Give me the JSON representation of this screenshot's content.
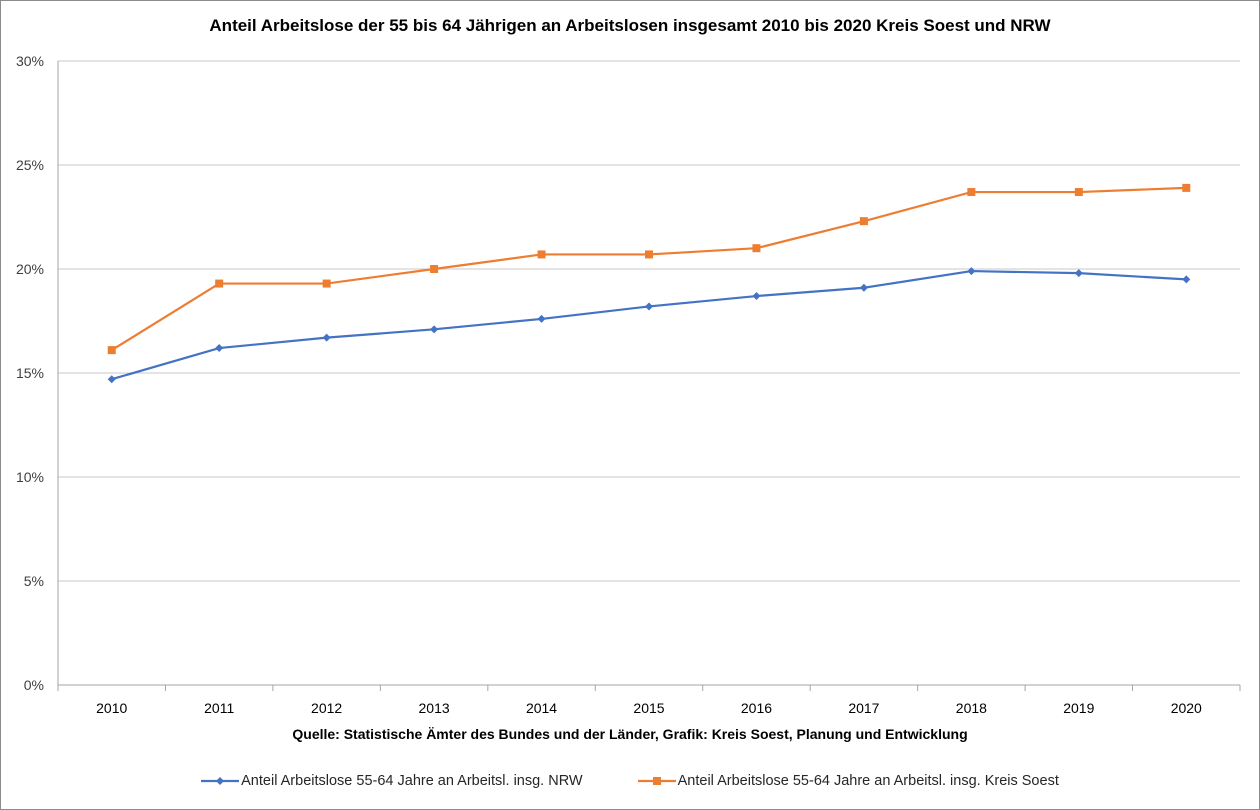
{
  "chart_data": {
    "type": "line",
    "title": "Anteil Arbeitslose der 55 bis 64 Jährigen an Arbeitslosen insgesamt 2010 bis 2020 Kreis Soest und NRW",
    "xlabel": "Quelle: Statistische Ämter des Bundes und der Länder, Grafik: Kreis Soest, Planung und Entwicklung",
    "ylabel": "",
    "categories": [
      "2010",
      "2011",
      "2012",
      "2013",
      "2014",
      "2015",
      "2016",
      "2017",
      "2018",
      "2019",
      "2020"
    ],
    "yticks": [
      "0%",
      "5%",
      "10%",
      "15%",
      "20%",
      "25%",
      "30%"
    ],
    "ylim": [
      0,
      30
    ],
    "grid": true,
    "legend_position": "bottom",
    "series": [
      {
        "name": "Anteil Arbeitslose 55-64 Jahre an Arbeitsl. insg. NRW",
        "color": "#4472C4",
        "marker": "diamond",
        "values": [
          14.7,
          16.2,
          16.7,
          17.1,
          17.6,
          18.2,
          18.7,
          19.1,
          19.9,
          19.8,
          19.5
        ]
      },
      {
        "name": "Anteil Arbeitslose 55-64 Jahre an Arbeitsl. insg. Kreis Soest",
        "color": "#ED7D31",
        "marker": "square",
        "values": [
          16.1,
          19.3,
          19.3,
          20.0,
          20.7,
          20.7,
          21.0,
          22.3,
          23.7,
          23.7,
          23.9
        ]
      }
    ]
  }
}
